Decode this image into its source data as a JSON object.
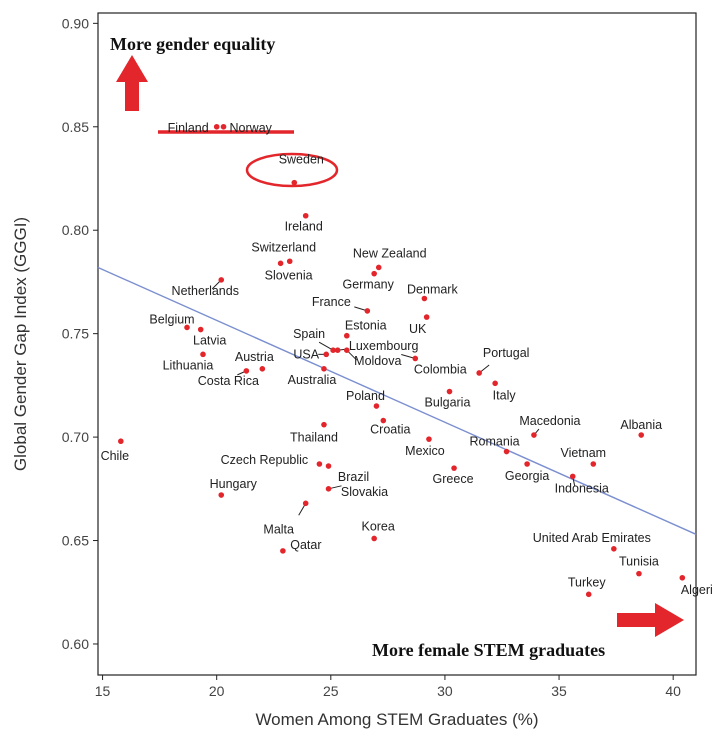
{
  "chart_data": {
    "type": "scatter",
    "title": "",
    "xlabel": "Women Among STEM Graduates (%)",
    "ylabel": "Global Gender Gap Index (GGGI)",
    "xlim": [
      14.8,
      41.0
    ],
    "ylim": [
      0.585,
      0.905
    ],
    "x_ticks": [
      "15",
      "20",
      "25",
      "30",
      "35",
      "40"
    ],
    "y_ticks": [
      "0.60",
      "0.65",
      "0.70",
      "0.75",
      "0.80",
      "0.85",
      "0.90"
    ],
    "grid": false,
    "point_color": "#e3262b",
    "trend_color": "#7b8fd0",
    "highlight_color": "#e3262b",
    "arrow_color": "#e3262b",
    "trendline": {
      "x": [
        14.8,
        41.0
      ],
      "y": [
        0.782,
        0.653
      ]
    },
    "annotations": {
      "top_left": "More gender equality",
      "bottom_right": "More female STEM graduates"
    },
    "points": [
      {
        "label": "Finland",
        "x": 20.0,
        "y": 0.85
      },
      {
        "label": "Norway",
        "x": 20.3,
        "y": 0.85
      },
      {
        "label": "Sweden",
        "x": 23.4,
        "y": 0.823
      },
      {
        "label": "Ireland",
        "x": 23.9,
        "y": 0.807
      },
      {
        "label": "Switzerland",
        "x": 23.2,
        "y": 0.785
      },
      {
        "label": "Slovenia",
        "x": 22.8,
        "y": 0.784
      },
      {
        "label": "New Zealand",
        "x": 27.1,
        "y": 0.782
      },
      {
        "label": "Germany",
        "x": 26.9,
        "y": 0.779
      },
      {
        "label": "Netherlands",
        "x": 20.2,
        "y": 0.776
      },
      {
        "label": "Denmark",
        "x": 29.1,
        "y": 0.767
      },
      {
        "label": "France",
        "x": 26.6,
        "y": 0.761
      },
      {
        "label": "UK",
        "x": 29.2,
        "y": 0.758
      },
      {
        "label": "Belgium",
        "x": 18.7,
        "y": 0.753
      },
      {
        "label": "Latvia",
        "x": 19.3,
        "y": 0.752
      },
      {
        "label": "Estonia",
        "x": 25.7,
        "y": 0.749
      },
      {
        "label": "Spain",
        "x": 25.1,
        "y": 0.742
      },
      {
        "label": "Luxembourg",
        "x": 25.3,
        "y": 0.742
      },
      {
        "label": "Lithuania",
        "x": 19.4,
        "y": 0.74
      },
      {
        "label": "USA",
        "x": 24.8,
        "y": 0.74
      },
      {
        "label": "Moldova",
        "x": 25.7,
        "y": 0.742
      },
      {
        "label": "Austria",
        "x": 22.0,
        "y": 0.733
      },
      {
        "label": "Costa Rica",
        "x": 21.3,
        "y": 0.732
      },
      {
        "label": "Australia",
        "x": 24.7,
        "y": 0.733
      },
      {
        "label": "Portugal",
        "x": 31.5,
        "y": 0.731
      },
      {
        "label": "Colombia",
        "x": 28.7,
        "y": 0.738
      },
      {
        "label": "Italy",
        "x": 32.2,
        "y": 0.726
      },
      {
        "label": "Bulgaria",
        "x": 30.2,
        "y": 0.722
      },
      {
        "label": "Poland",
        "x": 27.0,
        "y": 0.715
      },
      {
        "label": "Croatia",
        "x": 27.3,
        "y": 0.708
      },
      {
        "label": "Thailand",
        "x": 24.7,
        "y": 0.706
      },
      {
        "label": "Macedonia",
        "x": 33.9,
        "y": 0.701
      },
      {
        "label": "Albania",
        "x": 38.6,
        "y": 0.701
      },
      {
        "label": "Chile",
        "x": 15.8,
        "y": 0.698
      },
      {
        "label": "Mexico",
        "x": 29.3,
        "y": 0.699
      },
      {
        "label": "Romania",
        "x": 32.7,
        "y": 0.693
      },
      {
        "label": "Vietnam",
        "x": 36.5,
        "y": 0.687
      },
      {
        "label": "Czech Republic",
        "x": 24.5,
        "y": 0.687
      },
      {
        "label": "Georgia",
        "x": 33.6,
        "y": 0.687
      },
      {
        "label": "Greece",
        "x": 30.4,
        "y": 0.685
      },
      {
        "label": "Brazil",
        "x": 24.9,
        "y": 0.686
      },
      {
        "label": "Indonesia",
        "x": 35.6,
        "y": 0.681
      },
      {
        "label": "Slovakia",
        "x": 24.9,
        "y": 0.675
      },
      {
        "label": "Hungary",
        "x": 20.2,
        "y": 0.672
      },
      {
        "label": "Malta",
        "x": 23.9,
        "y": 0.668
      },
      {
        "label": "Korea",
        "x": 26.9,
        "y": 0.651
      },
      {
        "label": "United Arab Emirates",
        "x": 37.4,
        "y": 0.646
      },
      {
        "label": "Qatar",
        "x": 22.9,
        "y": 0.645
      },
      {
        "label": "Tunisia",
        "x": 38.5,
        "y": 0.634
      },
      {
        "label": "Algeria",
        "x": 40.4,
        "y": 0.632
      },
      {
        "label": "Turkey",
        "x": 36.3,
        "y": 0.624
      }
    ]
  }
}
